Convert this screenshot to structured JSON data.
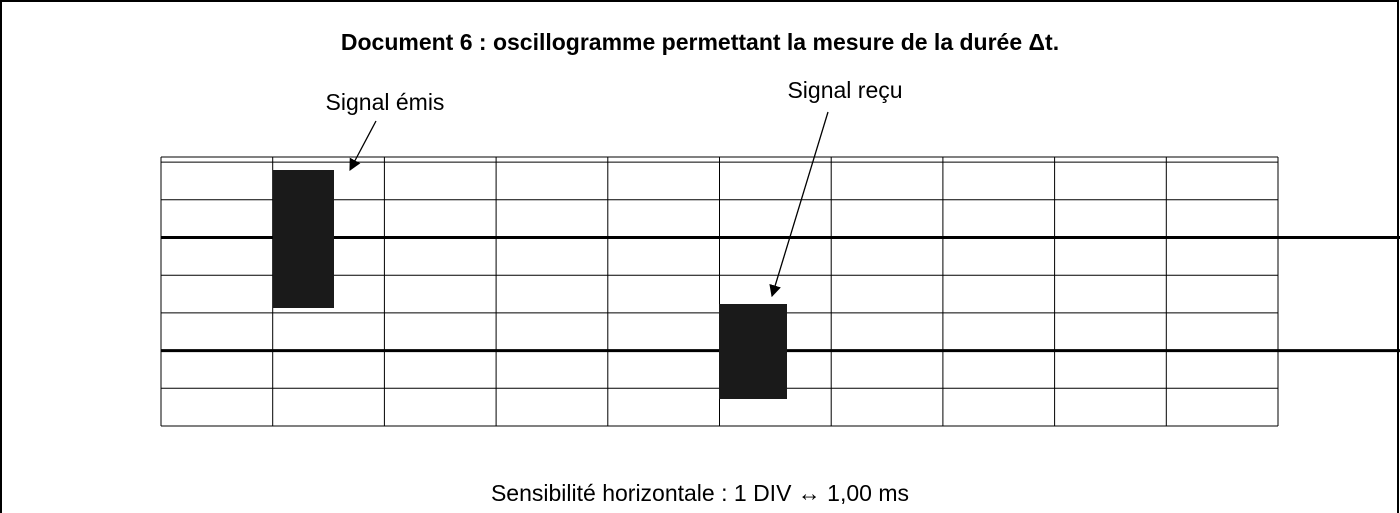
{
  "title": "Document 6 : oscillogramme permettant la mesure de la durée Δt.",
  "labels": {
    "emitted": "Signal émis",
    "received": "Signal reçu"
  },
  "caption": "Sensibilité horizontale : 1 DIV ↔ 1,00 ms"
}
